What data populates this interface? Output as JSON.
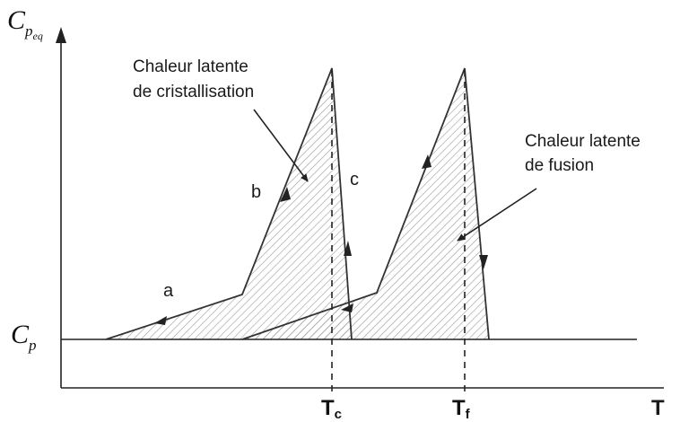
{
  "diagram": {
    "y_axis_label": {
      "main": "C",
      "sub": "p",
      "subsub": "eq"
    },
    "baseline_label": {
      "main": "C",
      "sub": "p"
    },
    "x_axis_label": "T",
    "tick_labels": [
      {
        "main": "T",
        "sub": "c"
      },
      {
        "main": "T",
        "sub": "f"
      }
    ],
    "annotations": {
      "crystallization": [
        "Chaleur latente",
        "de cristallisation"
      ],
      "fusion": [
        "Chaleur latente",
        "de fusion"
      ]
    },
    "segment_letters": [
      "a",
      "b",
      "c"
    ]
  }
}
